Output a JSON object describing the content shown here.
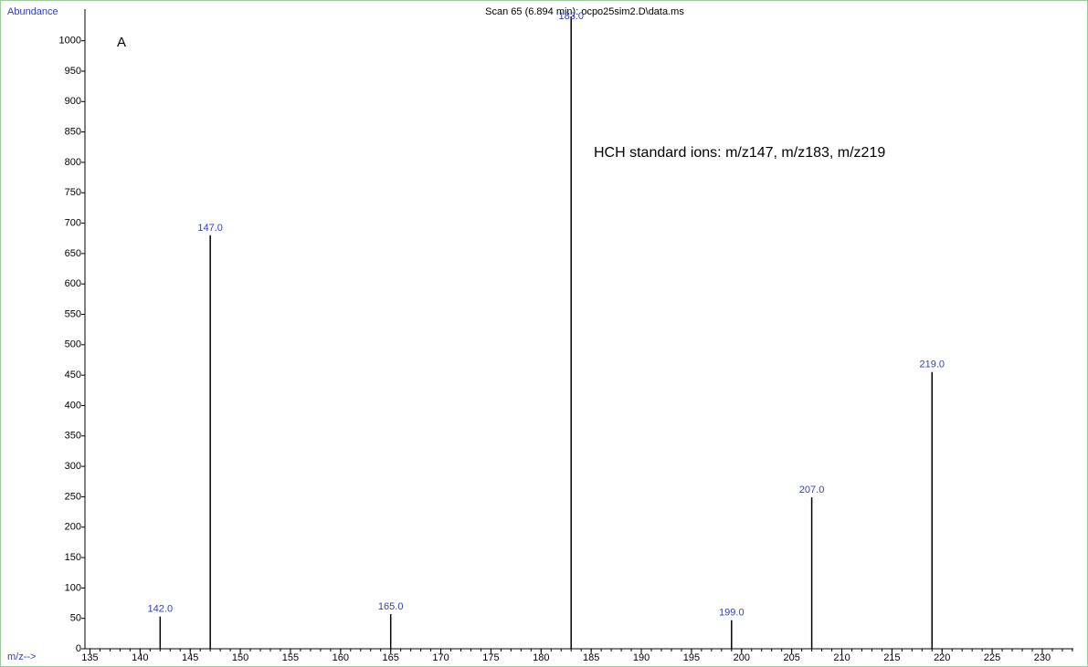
{
  "chart_data": {
    "type": "stem",
    "title": "Scan 65 (6.894 min): ocpo25sim2.D\\data.ms",
    "ylabel": "Abundance",
    "xlabel": "m/z-->",
    "annotations": [
      "A",
      "HCH standard ions: m/z147, m/z183, m/z219"
    ],
    "x": [
      142,
      147,
      165,
      183,
      199,
      207,
      219
    ],
    "x_labels": [
      "142.0",
      "147.0",
      "165.0",
      "183.0",
      "199.0",
      "207.0",
      "219.0"
    ],
    "values": [
      53,
      680,
      57,
      1040,
      47,
      249,
      455
    ],
    "color": "#000000",
    "xlim": [
      134.5,
      233.1
    ],
    "xticks": [
      135,
      140,
      145,
      150,
      155,
      160,
      165,
      170,
      175,
      180,
      185,
      190,
      195,
      200,
      205,
      210,
      215,
      220,
      225,
      230
    ],
    "xminor": 1,
    "ylim": [
      0,
      1052
    ],
    "yticks": [
      0,
      50,
      100,
      150,
      200,
      250,
      300,
      350,
      400,
      450,
      500,
      550,
      600,
      650,
      700,
      750,
      800,
      850,
      900,
      950,
      1000
    ]
  }
}
